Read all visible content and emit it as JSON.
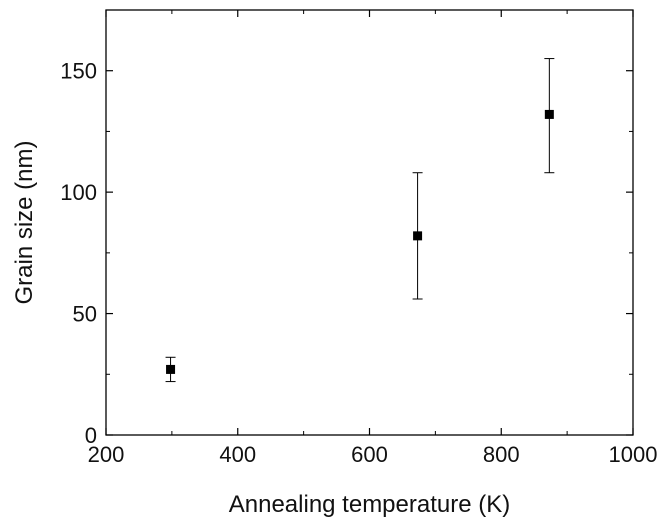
{
  "chart_data": {
    "type": "scatter",
    "title": "",
    "xlabel": "Annealing temperature (K)",
    "ylabel": "Grain size (nm)",
    "xlim": [
      200,
      1000
    ],
    "ylim": [
      0,
      175
    ],
    "xticks": [
      200,
      400,
      600,
      800,
      1000
    ],
    "yticks": [
      0,
      50,
      100,
      150
    ],
    "grid": false,
    "marker": "square",
    "color": "#000000",
    "points": [
      {
        "x": 298,
        "y": 27,
        "err_low": 22,
        "err_high": 32
      },
      {
        "x": 673,
        "y": 82,
        "err_low": 56,
        "err_high": 108
      },
      {
        "x": 873,
        "y": 132,
        "err_low": 108,
        "err_high": 155
      }
    ]
  }
}
